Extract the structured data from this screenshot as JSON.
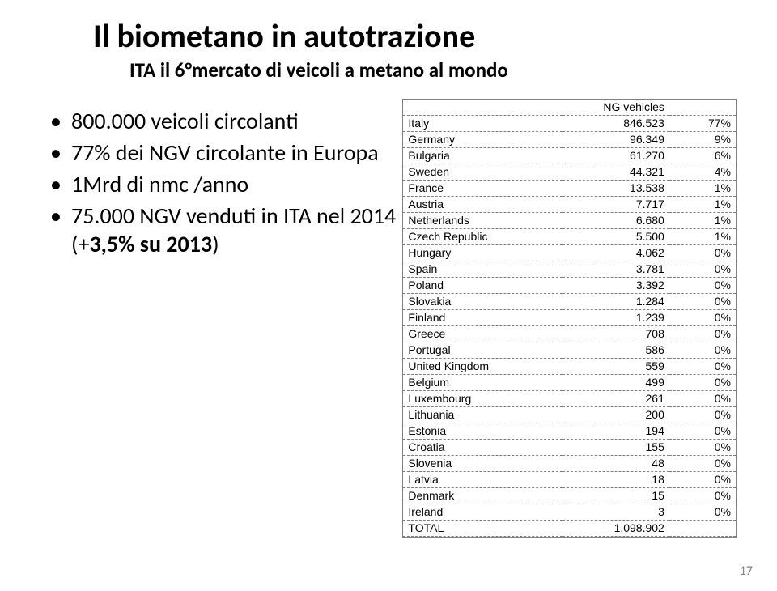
{
  "title": "Il biometano in autotrazione",
  "subtitle": "ITA il 6°mercato di veicoli a metano al mondo",
  "bullets": [
    {
      "text": "800.000 veicoli circolanti"
    },
    {
      "text": "77% dei NGV circolante in Europa"
    },
    {
      "text": "1Mrd di nmc /anno"
    },
    {
      "html": "75.000 NGV venduti in ITA nel 2014 (+<span class='bold'>3,5% su 2013</span>)"
    }
  ],
  "table": {
    "headers": [
      "",
      "NG vehicles",
      ""
    ],
    "rows": [
      [
        "Italy",
        "846.523",
        "77%"
      ],
      [
        "Germany",
        "96.349",
        "9%"
      ],
      [
        "Bulgaria",
        "61.270",
        "6%"
      ],
      [
        "Sweden",
        "44.321",
        "4%"
      ],
      [
        "France",
        "13.538",
        "1%"
      ],
      [
        "Austria",
        "7.717",
        "1%"
      ],
      [
        "Netherlands",
        "6.680",
        "1%"
      ],
      [
        "Czech Republic",
        "5.500",
        "1%"
      ],
      [
        "Hungary",
        "4.062",
        "0%"
      ],
      [
        "Spain",
        "3.781",
        "0%"
      ],
      [
        "Poland",
        "3.392",
        "0%"
      ],
      [
        "Slovakia",
        "1.284",
        "0%"
      ],
      [
        "Finland",
        "1.239",
        "0%"
      ],
      [
        "Greece",
        "708",
        "0%"
      ],
      [
        "Portugal",
        "586",
        "0%"
      ],
      [
        "United Kingdom",
        "559",
        "0%"
      ],
      [
        "Belgium",
        "499",
        "0%"
      ],
      [
        "Luxembourg",
        "261",
        "0%"
      ],
      [
        "Lithuania",
        "200",
        "0%"
      ],
      [
        "Estonia",
        "194",
        "0%"
      ],
      [
        "Croatia",
        "155",
        "0%"
      ],
      [
        "Slovenia",
        "48",
        "0%"
      ],
      [
        "Latvia",
        "18",
        "0%"
      ],
      [
        "Denmark",
        "15",
        "0%"
      ],
      [
        "Ireland",
        "3",
        "0%"
      ],
      [
        "TOTAL",
        "1.098.902",
        ""
      ]
    ]
  },
  "page_number": "17",
  "colors": {
    "background": "#ffffff",
    "text": "#000000",
    "grid": "#808080",
    "page_num": "#808080"
  }
}
